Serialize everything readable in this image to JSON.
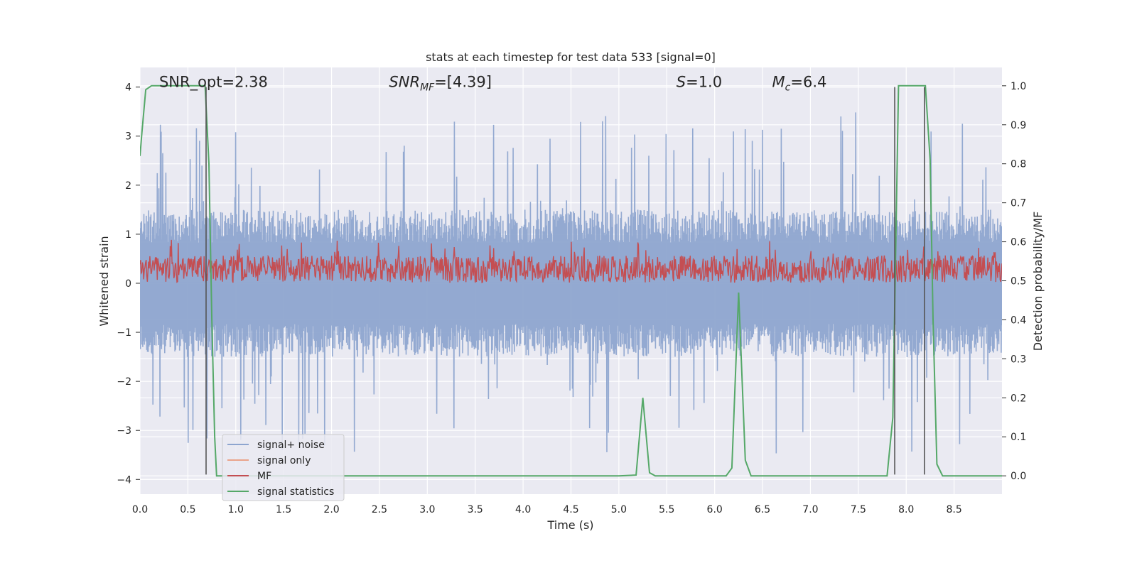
{
  "chart_data": {
    "type": "line",
    "title": "stats at each timestep for test data 533 [signal=0]",
    "xlabel": "Time (s)",
    "ylabel": "Whitened strain",
    "y2label": "Detection probability/MF",
    "xlim": [
      0,
      9
    ],
    "ylim": [
      -4.3,
      4.4
    ],
    "y2lim": [
      -0.047,
      1.047
    ],
    "xticks": [
      0.0,
      0.5,
      1.0,
      1.5,
      2.0,
      2.5,
      3.0,
      3.5,
      4.0,
      4.5,
      5.0,
      5.5,
      6.0,
      6.5,
      7.0,
      7.5,
      8.0,
      8.5
    ],
    "xtick_labels": [
      "0.0",
      "0.5",
      "1.0",
      "1.5",
      "2.0",
      "2.5",
      "3.0",
      "3.5",
      "4.0",
      "4.5",
      "5.0",
      "5.5",
      "6.0",
      "6.5",
      "7.0",
      "7.5",
      "8.0",
      "8.5"
    ],
    "yticks": [
      4,
      3,
      2,
      1,
      0,
      -1,
      -2,
      -3,
      -4
    ],
    "ytick_labels": [
      "4",
      "3",
      "2",
      "1",
      "0",
      "−1",
      "−2",
      "−3",
      "−4"
    ],
    "y2ticks": [
      1.0,
      0.9,
      0.8,
      0.7,
      0.6,
      0.5,
      0.4,
      0.3,
      0.2,
      0.1,
      0.0
    ],
    "y2tick_labels": [
      "1.0",
      "0.9",
      "0.8",
      "0.7",
      "0.6",
      "0.5",
      "0.4",
      "0.3",
      "0.2",
      "0.1",
      "0.0"
    ],
    "grid": true,
    "legend_position": "lower-left",
    "annotations": [
      {
        "text": "SNR_opt=2.38",
        "x": 0.2,
        "y": 4.1
      },
      {
        "main": "SNR",
        "sub": "MF",
        "rest": "=[4.39]",
        "x": 2.6,
        "y": 4.1
      },
      {
        "main": "S",
        "sub": "",
        "rest": "=1.0",
        "x": 5.6,
        "y": 4.1
      },
      {
        "main": "M",
        "sub": "c",
        "rest": "=6.4",
        "x": 6.6,
        "y": 4.1
      }
    ],
    "vertical_markers": [
      0.69,
      7.88,
      8.19
    ],
    "marker_range": [
      -3.9,
      4.0
    ],
    "series": [
      {
        "name": "signal+ noise",
        "axis": "left",
        "color": "#8ea5cf",
        "kind": "noise",
        "amplitude": 1.5,
        "spike_max": 3.5
      },
      {
        "name": "signal only",
        "axis": "left",
        "color": "#eaa48a",
        "kind": "empty",
        "values": []
      },
      {
        "name": "MF",
        "axis": "right",
        "color": "#c44e52",
        "kind": "mf",
        "baseline": 0.53,
        "spread": 0.035
      },
      {
        "name": "signal statistics",
        "axis": "right",
        "color": "#55a868",
        "kind": "line",
        "x": [
          0.0,
          0.02,
          0.06,
          0.12,
          0.2,
          0.6,
          0.68,
          0.72,
          0.75,
          0.78,
          0.8,
          1.0,
          2.0,
          3.0,
          4.0,
          4.5,
          5.0,
          5.18,
          5.25,
          5.32,
          5.38,
          5.5,
          6.0,
          6.12,
          6.18,
          6.25,
          6.32,
          6.38,
          6.5,
          7.0,
          7.5,
          7.8,
          7.86,
          7.92,
          7.98,
          8.2,
          8.25,
          8.28,
          8.32,
          8.38,
          8.5,
          9.0
        ],
        "values": [
          0.82,
          0.88,
          0.99,
          1.0,
          1.0,
          1.0,
          1.0,
          0.8,
          0.4,
          0.1,
          0.0,
          0.0,
          0.0,
          0.0,
          0.0,
          0.0,
          0.0,
          0.002,
          0.2,
          0.008,
          0.0,
          0.0,
          0.0,
          0.0,
          0.02,
          0.47,
          0.04,
          0.0,
          0.0,
          0.0,
          0.0,
          0.0,
          0.15,
          1.0,
          1.0,
          1.0,
          0.81,
          0.4,
          0.03,
          0.0,
          0.0,
          0.0
        ]
      }
    ]
  }
}
